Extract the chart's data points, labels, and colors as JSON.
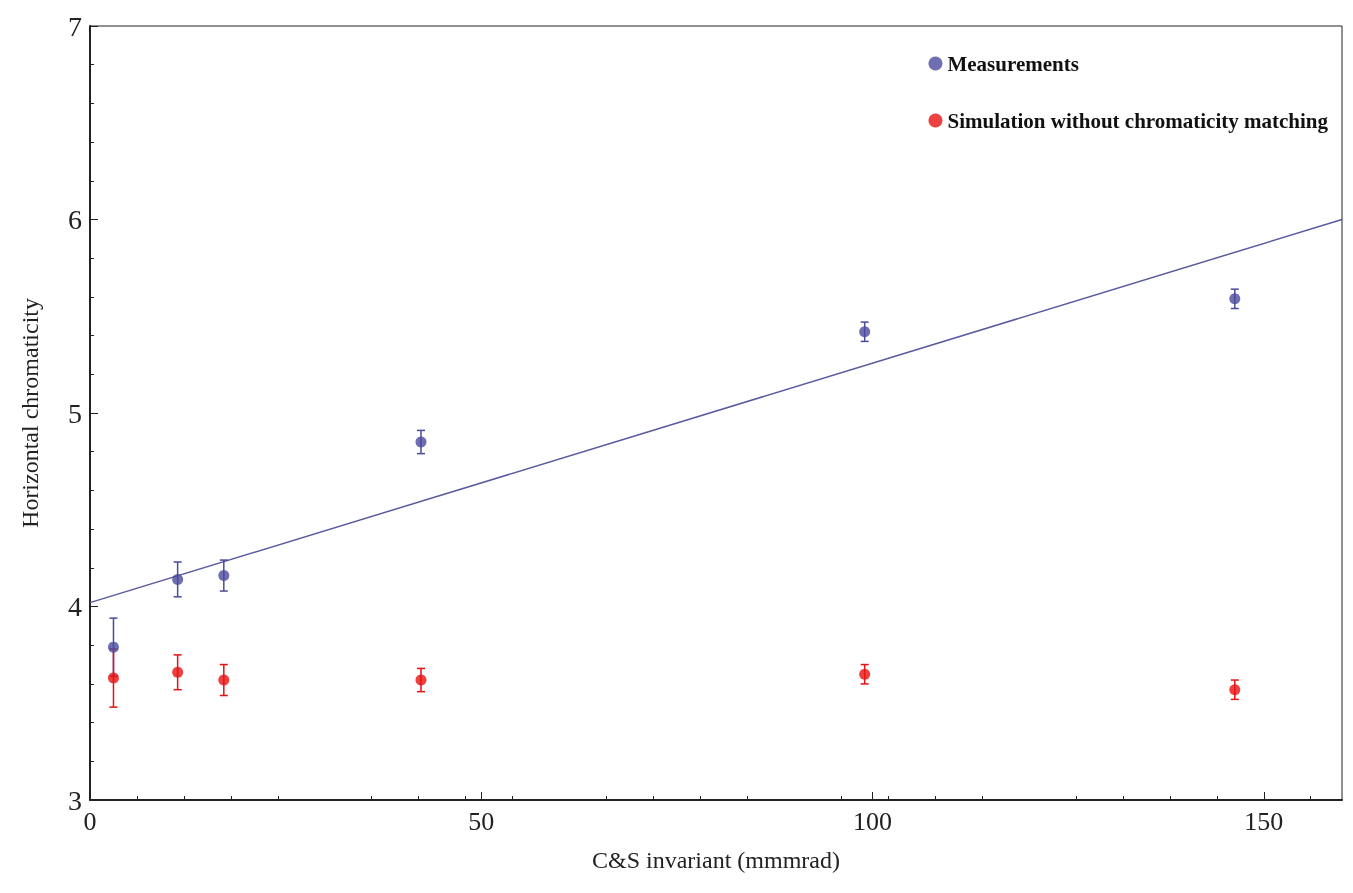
{
  "chart_data": {
    "type": "scatter",
    "xlabel": "C&S invariant (mmmrad)",
    "ylabel": "Horizontal chromaticity",
    "xlim": [
      0,
      160
    ],
    "xticks": [
      0,
      50,
      100,
      150
    ],
    "ylim": [
      3,
      7
    ],
    "yticks": [
      3,
      4,
      5,
      6,
      7
    ],
    "grid": false,
    "legend": "top right",
    "marker": "circle",
    "series": [
      {
        "name": "Measurements",
        "color": "#4a4a9e",
        "x": [
          3,
          11.2,
          17.1,
          42.3,
          99,
          146.3
        ],
        "values": [
          3.79,
          4.14,
          4.16,
          4.85,
          5.42,
          5.59
        ],
        "errors": [
          0.15,
          0.09,
          0.08,
          0.06,
          0.05,
          0.05
        ]
      },
      {
        "name": "Simulation without chromaticity matching",
        "color": "#e81010",
        "x": [
          3,
          11.2,
          17.1,
          42.3,
          99,
          146.3
        ],
        "values": [
          3.63,
          3.66,
          3.62,
          3.62,
          3.65,
          3.57
        ],
        "errors": [
          0.15,
          0.09,
          0.08,
          0.06,
          0.05,
          0.05
        ]
      },
      {
        "type": "line",
        "color": "#5a5aa0",
        "x": [
          0,
          160
        ],
        "values": [
          4.02,
          6.0
        ],
        "marker": "none"
      }
    ]
  }
}
